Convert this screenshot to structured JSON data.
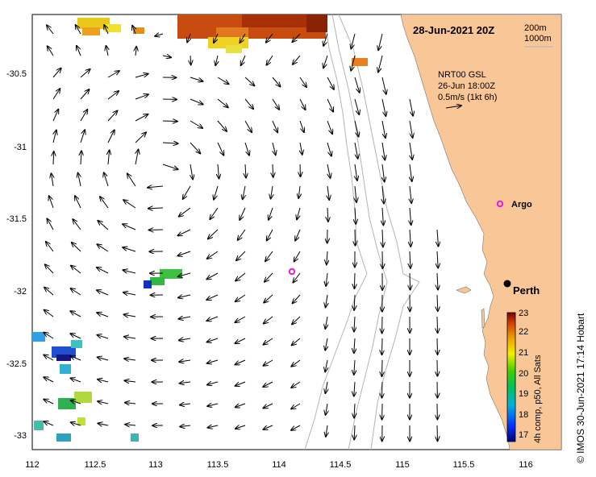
{
  "date_title": "28-Jun-2021 20Z",
  "depth_legend": [
    "200m",
    "1000m"
  ],
  "info_lines": [
    "NRT00 GSL",
    "26-Jun 18:00Z",
    "0.5m/s (1kt 6h)"
  ],
  "places": {
    "argo_land": "Argo",
    "city": "Perth"
  },
  "x_ticks": [
    "112",
    "112.5",
    "113",
    "113.5",
    "114",
    "114.5",
    "115",
    "115.5",
    "116"
  ],
  "y_ticks": [
    "-30.5",
    "-31",
    "-31.5",
    "-32",
    "-32.5",
    "-33"
  ],
  "colorbar": {
    "ticks": [
      "23",
      "22",
      "21",
      "20",
      "19",
      "18",
      "17"
    ],
    "label": "4h comp, p50, All Sats"
  },
  "credit": "© IMOS 30-Jun-2021 17:14 Hobart",
  "colors": {
    "land": "#f9c797",
    "argo": "#e020e0",
    "isobath": "#b4b4b4",
    "arrow": "#000000"
  }
}
